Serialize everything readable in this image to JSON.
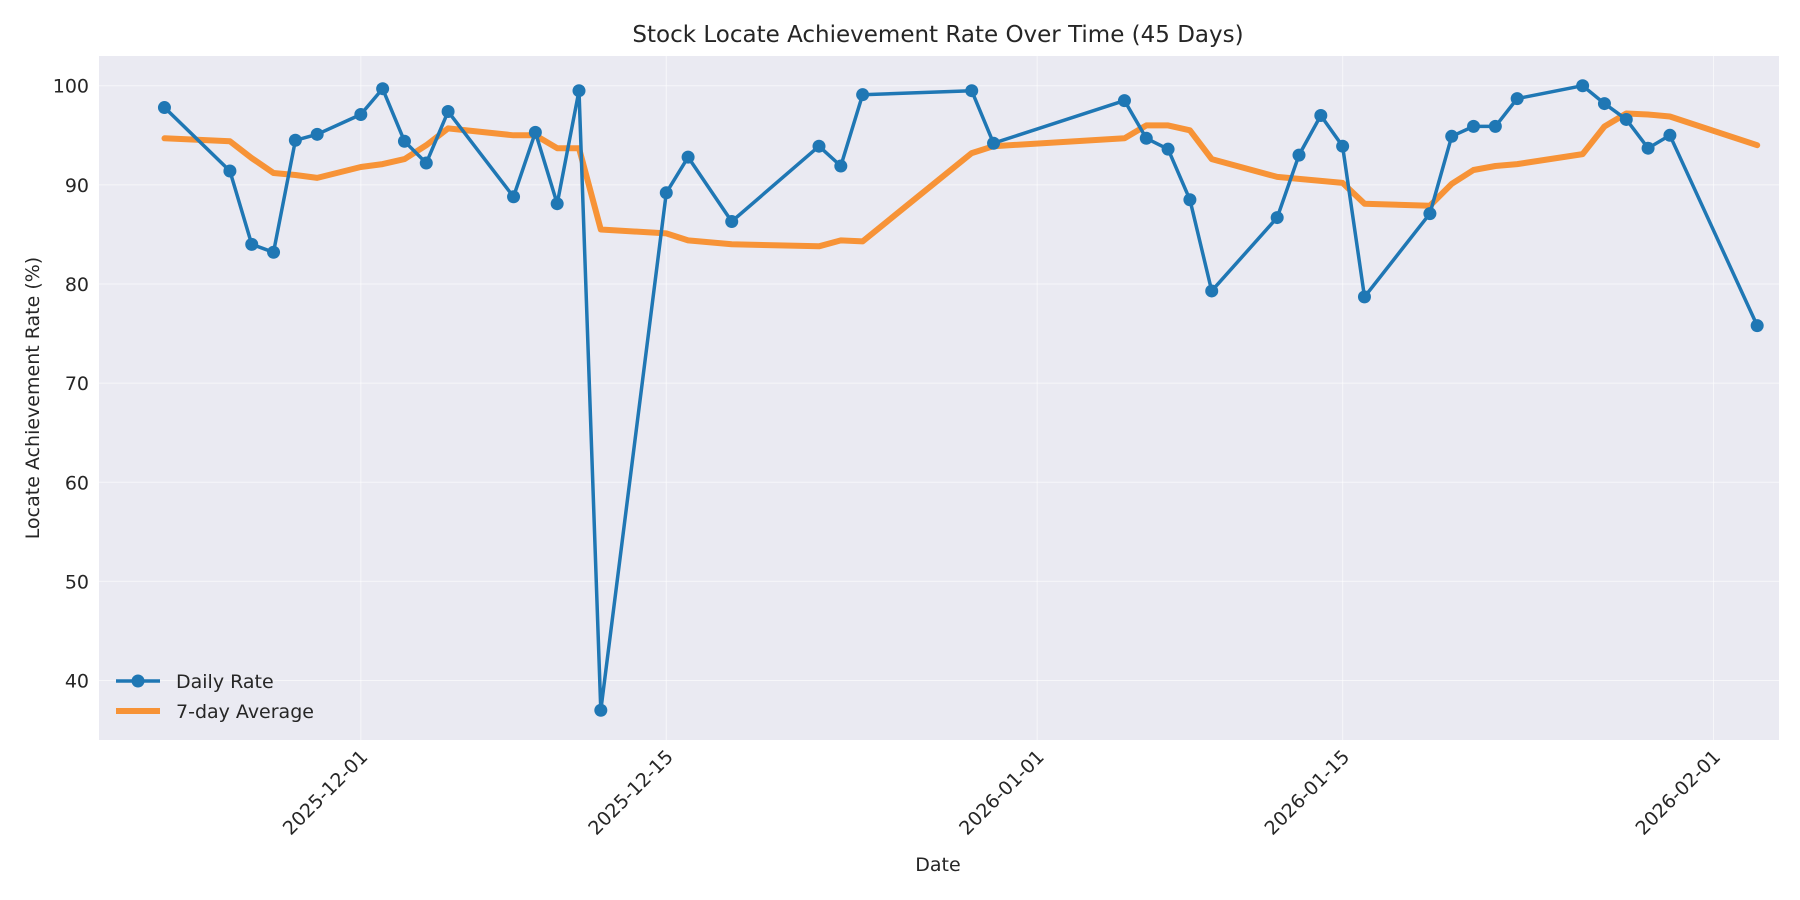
{
  "chart_data": {
    "type": "line",
    "title": "Stock Locate Achievement Rate Over Time (45 Days)",
    "xlabel": "Date",
    "ylabel": "Locate Achievement Rate (%)",
    "ylim": [
      34,
      103
    ],
    "xlim": [
      "2025-11-19",
      "2026-02-04"
    ],
    "yticks": [
      40,
      50,
      60,
      70,
      80,
      90,
      100
    ],
    "xticks": [
      "2025-12-01",
      "2025-12-15",
      "2026-01-01",
      "2026-01-15",
      "2026-02-01"
    ],
    "grid": true,
    "legend_position": "lower-left",
    "colors": {
      "plot_bg": "#eaeaf2",
      "daily": "#1f77b4",
      "avg": "#f79337"
    },
    "series": [
      {
        "name": "Daily Rate",
        "marker": "circle",
        "points": [
          [
            "2025-11-22",
            97.8
          ],
          [
            "2025-11-25",
            91.4
          ],
          [
            "2025-11-26",
            84.0
          ],
          [
            "2025-11-27",
            83.2
          ],
          [
            "2025-11-28",
            94.5
          ],
          [
            "2025-11-29",
            95.1
          ],
          [
            "2025-12-01",
            97.1
          ],
          [
            "2025-12-02",
            99.7
          ],
          [
            "2025-12-03",
            94.4
          ],
          [
            "2025-12-04",
            92.2
          ],
          [
            "2025-12-05",
            97.4
          ],
          [
            "2025-12-08",
            88.8
          ],
          [
            "2025-12-09",
            95.3
          ],
          [
            "2025-12-10",
            88.1
          ],
          [
            "2025-12-11",
            99.5
          ],
          [
            "2025-12-12",
            37.0
          ],
          [
            "2025-12-15",
            89.2
          ],
          [
            "2025-12-16",
            92.8
          ],
          [
            "2025-12-18",
            86.3
          ],
          [
            "2025-12-22",
            93.9
          ],
          [
            "2025-12-23",
            91.9
          ],
          [
            "2025-12-24",
            99.1
          ],
          [
            "2025-12-29",
            99.5
          ],
          [
            "2025-12-30",
            94.2
          ],
          [
            "2026-01-05",
            98.5
          ],
          [
            "2026-01-06",
            94.7
          ],
          [
            "2026-01-07",
            93.6
          ],
          [
            "2026-01-08",
            88.5
          ],
          [
            "2026-01-09",
            79.3
          ],
          [
            "2026-01-12",
            86.7
          ],
          [
            "2026-01-13",
            93.0
          ],
          [
            "2026-01-14",
            97.0
          ],
          [
            "2026-01-15",
            93.9
          ],
          [
            "2026-01-16",
            78.7
          ],
          [
            "2026-01-19",
            87.1
          ],
          [
            "2026-01-20",
            94.9
          ],
          [
            "2026-01-21",
            95.9
          ],
          [
            "2026-01-22",
            95.9
          ],
          [
            "2026-01-23",
            98.7
          ],
          [
            "2026-01-26",
            100.0
          ],
          [
            "2026-01-27",
            98.2
          ],
          [
            "2026-01-28",
            96.6
          ],
          [
            "2026-01-29",
            93.7
          ],
          [
            "2026-01-30",
            95.0
          ],
          [
            "2026-02-03",
            75.8
          ]
        ]
      },
      {
        "name": "7-day Average",
        "marker": "none",
        "points": [
          [
            "2025-11-22",
            94.7
          ],
          [
            "2025-11-25",
            94.4
          ],
          [
            "2025-11-26",
            92.7
          ],
          [
            "2025-11-27",
            91.2
          ],
          [
            "2025-11-28",
            91.0
          ],
          [
            "2025-11-29",
            90.7
          ],
          [
            "2025-12-01",
            91.8
          ],
          [
            "2025-12-02",
            92.1
          ],
          [
            "2025-12-03",
            92.6
          ],
          [
            "2025-12-04",
            94.0
          ],
          [
            "2025-12-05",
            95.7
          ],
          [
            "2025-12-08",
            95.0
          ],
          [
            "2025-12-09",
            95.0
          ],
          [
            "2025-12-10",
            93.7
          ],
          [
            "2025-12-11",
            93.7
          ],
          [
            "2025-12-12",
            85.5
          ],
          [
            "2025-12-15",
            85.1
          ],
          [
            "2025-12-16",
            84.4
          ],
          [
            "2025-12-18",
            84.0
          ],
          [
            "2025-12-22",
            83.8
          ],
          [
            "2025-12-23",
            84.4
          ],
          [
            "2025-12-24",
            84.3
          ],
          [
            "2025-12-29",
            93.2
          ],
          [
            "2025-12-30",
            93.9
          ],
          [
            "2026-01-05",
            94.7
          ],
          [
            "2026-01-06",
            96.0
          ],
          [
            "2026-01-07",
            96.0
          ],
          [
            "2026-01-08",
            95.5
          ],
          [
            "2026-01-09",
            92.6
          ],
          [
            "2026-01-12",
            90.8
          ],
          [
            "2026-01-13",
            90.6
          ],
          [
            "2026-01-14",
            90.4
          ],
          [
            "2026-01-15",
            90.2
          ],
          [
            "2026-01-16",
            88.1
          ],
          [
            "2026-01-19",
            87.9
          ],
          [
            "2026-01-20",
            90.1
          ],
          [
            "2026-01-21",
            91.5
          ],
          [
            "2026-01-22",
            91.9
          ],
          [
            "2026-01-23",
            92.1
          ],
          [
            "2026-01-26",
            93.1
          ],
          [
            "2026-01-27",
            95.9
          ],
          [
            "2026-01-28",
            97.2
          ],
          [
            "2026-01-29",
            97.1
          ],
          [
            "2026-01-30",
            96.9
          ],
          [
            "2026-02-03",
            94.0
          ]
        ]
      }
    ]
  }
}
